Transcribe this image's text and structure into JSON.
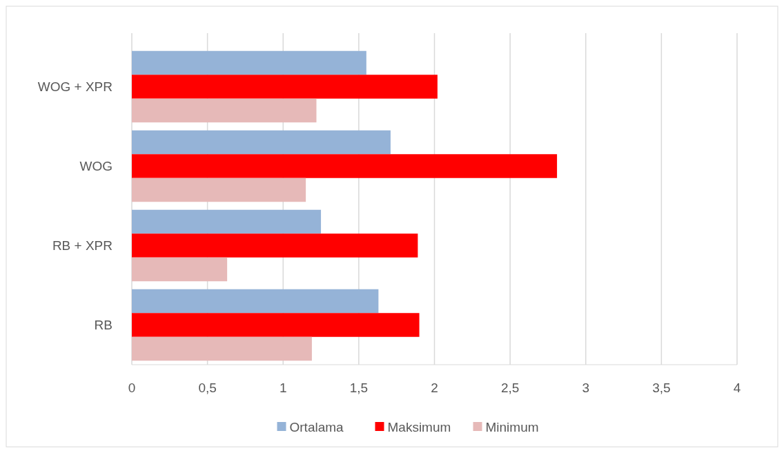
{
  "chart_data": {
    "type": "bar",
    "orientation": "horizontal",
    "categories": [
      "WOG + XPR",
      "WOG",
      "RB + XPR",
      "RB"
    ],
    "series": [
      {
        "name": "Ortalama",
        "color": "#95b3d7",
        "values": [
          1.55,
          1.71,
          1.25,
          1.63
        ]
      },
      {
        "name": "Maksimum",
        "color": "#ff0000",
        "values": [
          2.02,
          2.81,
          1.89,
          1.9
        ]
      },
      {
        "name": "Minimum",
        "color": "#e6b9b8",
        "values": [
          1.22,
          1.15,
          0.63,
          1.19
        ]
      }
    ],
    "xlim": [
      0,
      4
    ],
    "xticks": [
      0,
      {
        "value": 0.5,
        "label": "0,5"
      },
      1,
      {
        "value": 1.5,
        "label": "1,5"
      },
      2,
      {
        "value": 2.5,
        "label": "2,5"
      },
      3,
      {
        "value": 3.5,
        "label": "3,5"
      },
      4
    ],
    "grid": "x",
    "legend": "bottom"
  }
}
